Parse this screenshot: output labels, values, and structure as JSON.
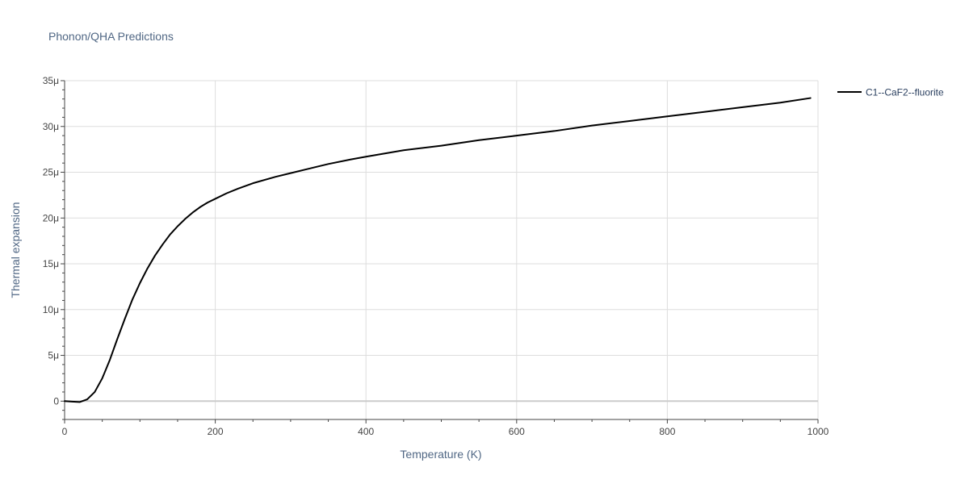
{
  "chart_data": {
    "type": "line",
    "title": "Phonon/QHA Predictions",
    "xlabel": "Temperature (K)",
    "ylabel": "Thermal expansion",
    "xlim": [
      0,
      1000
    ],
    "ylim": [
      -2,
      35
    ],
    "x_ticks": [
      0,
      200,
      400,
      600,
      800,
      1000
    ],
    "x_tick_labels": [
      "0",
      "200",
      "400",
      "600",
      "800",
      "1000"
    ],
    "y_ticks": [
      0,
      5,
      10,
      15,
      20,
      25,
      30,
      35
    ],
    "y_tick_labels": [
      "0",
      "5μ",
      "10μ",
      "15μ",
      "20μ",
      "25μ",
      "30μ",
      "35μ"
    ],
    "y_unit_note": "values in units of 1e-6 (μ)",
    "grid": true,
    "legend_position": "top-right-outside",
    "series": [
      {
        "name": "C1--CaF2--fluorite",
        "color": "#000000",
        "x": [
          0,
          10,
          20,
          30,
          40,
          50,
          60,
          70,
          80,
          90,
          100,
          110,
          120,
          130,
          140,
          150,
          160,
          170,
          180,
          190,
          200,
          215,
          230,
          250,
          280,
          300,
          330,
          350,
          380,
          400,
          450,
          500,
          550,
          600,
          650,
          700,
          750,
          800,
          850,
          900,
          950,
          990
        ],
        "y": [
          0.0,
          -0.05,
          -0.1,
          0.2,
          1.0,
          2.5,
          4.5,
          6.8,
          9.0,
          11.1,
          12.9,
          14.5,
          15.9,
          17.1,
          18.2,
          19.1,
          19.9,
          20.6,
          21.2,
          21.7,
          22.1,
          22.7,
          23.2,
          23.8,
          24.5,
          24.9,
          25.5,
          25.9,
          26.4,
          26.7,
          27.4,
          27.9,
          28.5,
          29.0,
          29.5,
          30.1,
          30.6,
          31.1,
          31.6,
          32.1,
          32.6,
          33.1
        ]
      }
    ]
  }
}
